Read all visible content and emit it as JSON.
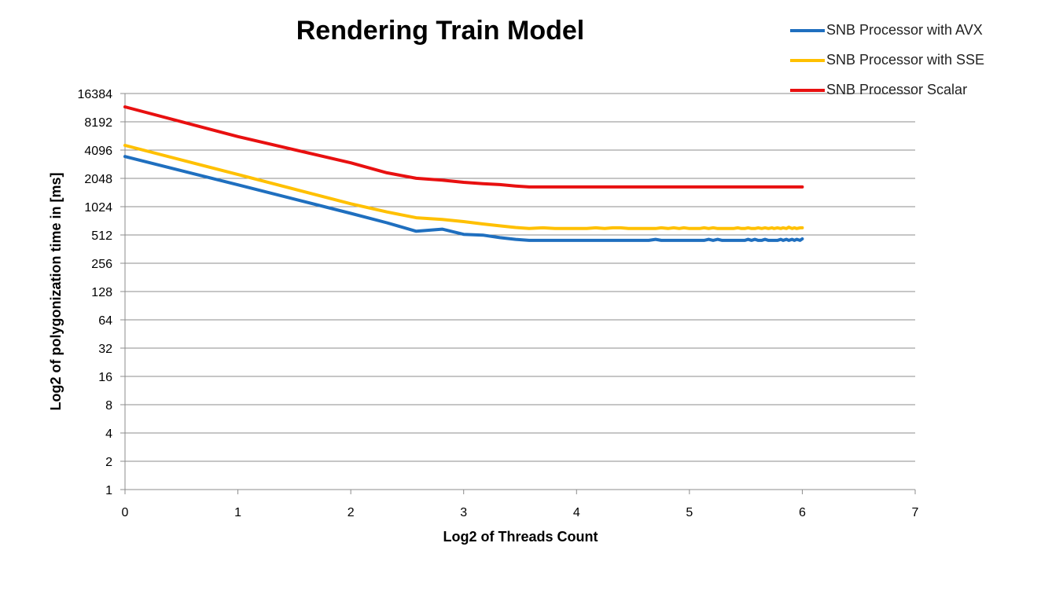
{
  "chart_data": {
    "type": "line",
    "title": "Rendering Train Model",
    "xlabel": "Log2 of Threads Count",
    "ylabel": "Log2 of polygonization time in [ms]",
    "xlim": [
      0,
      7
    ],
    "ylim": [
      1,
      16384
    ],
    "y_scale": "log2",
    "x_ticks": [
      0,
      1,
      2,
      3,
      4,
      5,
      6,
      7
    ],
    "y_ticks": [
      1,
      2,
      4,
      8,
      16,
      32,
      64,
      128,
      256,
      512,
      1024,
      2048,
      4096,
      8192,
      16384
    ],
    "grid": "horizontal",
    "legend_position": "top-right",
    "series": [
      {
        "name": "SNB Processor with AVX",
        "color": "#1f6fbf",
        "x": [
          0,
          1,
          2,
          2.32,
          2.58,
          2.81,
          3,
          3.17,
          3.32,
          3.46,
          3.58,
          3.7,
          3.81,
          3.91,
          4,
          4.09,
          4.17,
          4.25,
          4.32,
          4.39,
          4.46,
          4.52,
          4.58,
          4.64,
          4.7,
          4.75,
          4.81,
          4.86,
          4.91,
          4.95,
          5,
          5.04,
          5.09,
          5.13,
          5.17,
          5.21,
          5.25,
          5.29,
          5.32,
          5.36,
          5.39,
          5.43,
          5.46,
          5.49,
          5.52,
          5.55,
          5.58,
          5.61,
          5.64,
          5.67,
          5.7,
          5.73,
          5.75,
          5.78,
          5.81,
          5.83,
          5.86,
          5.88,
          5.91,
          5.93,
          5.95,
          5.98,
          6
        ],
        "y": [
          3500,
          1750,
          870,
          690,
          560,
          590,
          520,
          510,
          480,
          460,
          448,
          448,
          448,
          448,
          448,
          448,
          448,
          448,
          448,
          448,
          448,
          448,
          448,
          448,
          460,
          448,
          448,
          448,
          448,
          448,
          448,
          448,
          448,
          448,
          460,
          448,
          460,
          448,
          448,
          448,
          448,
          448,
          448,
          448,
          460,
          448,
          460,
          448,
          448,
          460,
          448,
          448,
          448,
          448,
          460,
          448,
          460,
          448,
          460,
          448,
          460,
          448,
          465
        ]
      },
      {
        "name": "SNB Processor with SSE",
        "color": "#ffc000",
        "x": [
          0,
          1,
          2,
          2.32,
          2.58,
          2.81,
          3,
          3.17,
          3.32,
          3.46,
          3.58,
          3.7,
          3.81,
          3.91,
          4,
          4.09,
          4.17,
          4.25,
          4.32,
          4.39,
          4.46,
          4.52,
          4.58,
          4.64,
          4.7,
          4.75,
          4.81,
          4.86,
          4.91,
          4.95,
          5,
          5.04,
          5.09,
          5.13,
          5.17,
          5.21,
          5.25,
          5.29,
          5.32,
          5.36,
          5.39,
          5.43,
          5.46,
          5.49,
          5.52,
          5.55,
          5.58,
          5.61,
          5.64,
          5.67,
          5.7,
          5.73,
          5.75,
          5.78,
          5.81,
          5.83,
          5.86,
          5.88,
          5.91,
          5.93,
          5.95,
          5.98,
          6
        ],
        "y": [
          4600,
          2250,
          1100,
          900,
          780,
          750,
          710,
          670,
          640,
          615,
          600,
          610,
          600,
          600,
          600,
          600,
          610,
          600,
          610,
          610,
          600,
          600,
          600,
          600,
          600,
          610,
          600,
          610,
          600,
          610,
          600,
          600,
          600,
          610,
          600,
          610,
          600,
          600,
          600,
          600,
          600,
          610,
          600,
          600,
          610,
          600,
          600,
          610,
          600,
          610,
          600,
          610,
          600,
          610,
          600,
          610,
          600,
          620,
          600,
          610,
          600,
          610,
          610
        ]
      },
      {
        "name": "SNB Processor Scalar",
        "color": "#e81010",
        "x": [
          0,
          1,
          2,
          2.32,
          2.58,
          2.81,
          3,
          3.17,
          3.32,
          3.46,
          3.58,
          3.7,
          3.81,
          3.91,
          4,
          4.09,
          4.17,
          4.25,
          4.32,
          4.39,
          4.46,
          4.52,
          4.58,
          4.64,
          4.7,
          4.75,
          4.81,
          4.86,
          4.91,
          4.95,
          5,
          5.04,
          5.09,
          5.13,
          5.17,
          5.21,
          5.25,
          5.29,
          5.32,
          5.36,
          5.39,
          5.43,
          5.46,
          5.49,
          5.52,
          5.55,
          5.58,
          5.61,
          5.64,
          5.67,
          5.7,
          5.73,
          5.75,
          5.78,
          5.81,
          5.83,
          5.86,
          5.88,
          5.91,
          5.93,
          5.95,
          5.98,
          6
        ],
        "y": [
          11800,
          5700,
          3000,
          2350,
          2050,
          1960,
          1860,
          1800,
          1760,
          1700,
          1660,
          1660,
          1660,
          1660,
          1660,
          1660,
          1660,
          1660,
          1660,
          1660,
          1660,
          1660,
          1660,
          1660,
          1660,
          1660,
          1660,
          1660,
          1660,
          1660,
          1660,
          1660,
          1660,
          1660,
          1660,
          1660,
          1660,
          1660,
          1660,
          1660,
          1660,
          1660,
          1660,
          1660,
          1660,
          1660,
          1660,
          1660,
          1660,
          1660,
          1660,
          1660,
          1660,
          1660,
          1660,
          1660,
          1660,
          1660,
          1660,
          1660,
          1660,
          1660,
          1660
        ]
      }
    ]
  }
}
